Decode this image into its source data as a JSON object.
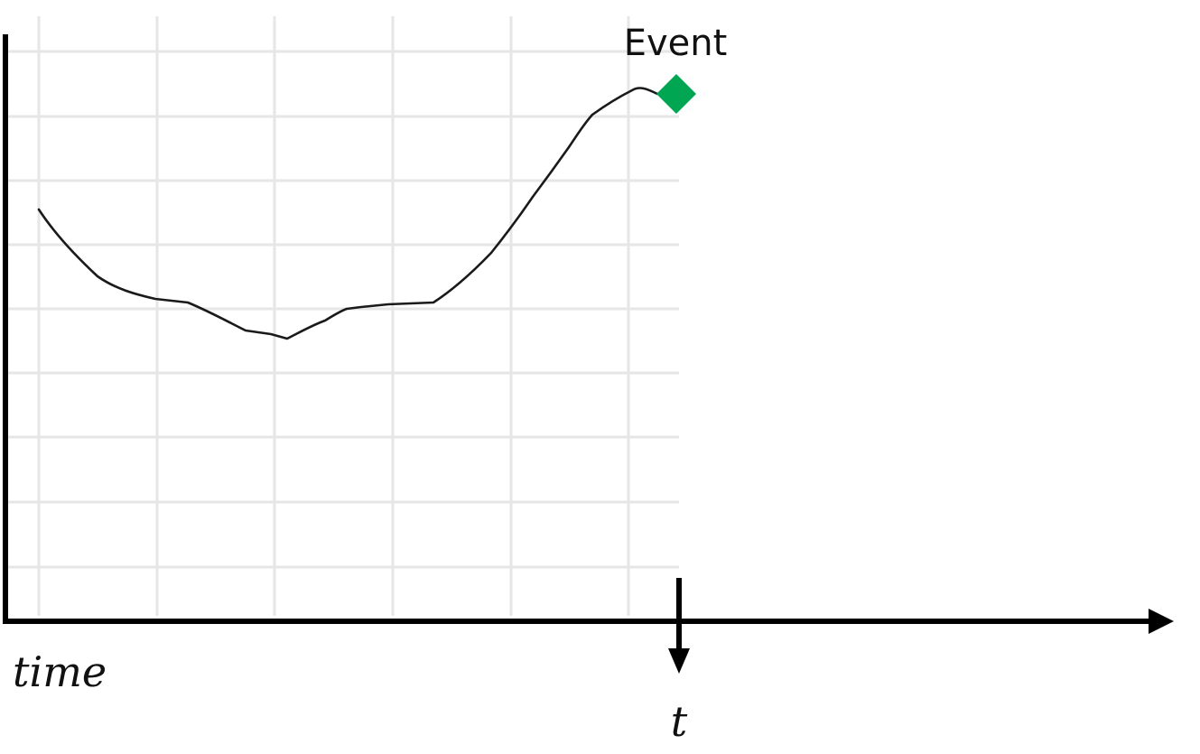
{
  "labels": {
    "event": "Event",
    "x_axis": "time",
    "t_marker": "t"
  },
  "colors": {
    "event_marker": "#00a651",
    "trace": "#1a1a1a",
    "axis": "#000000",
    "grid": "#e6e6e6"
  },
  "icons": {
    "event_marker": "green-diamond",
    "x_axis_head": "right-arrow",
    "t_marker_head": "down-arrow"
  }
}
